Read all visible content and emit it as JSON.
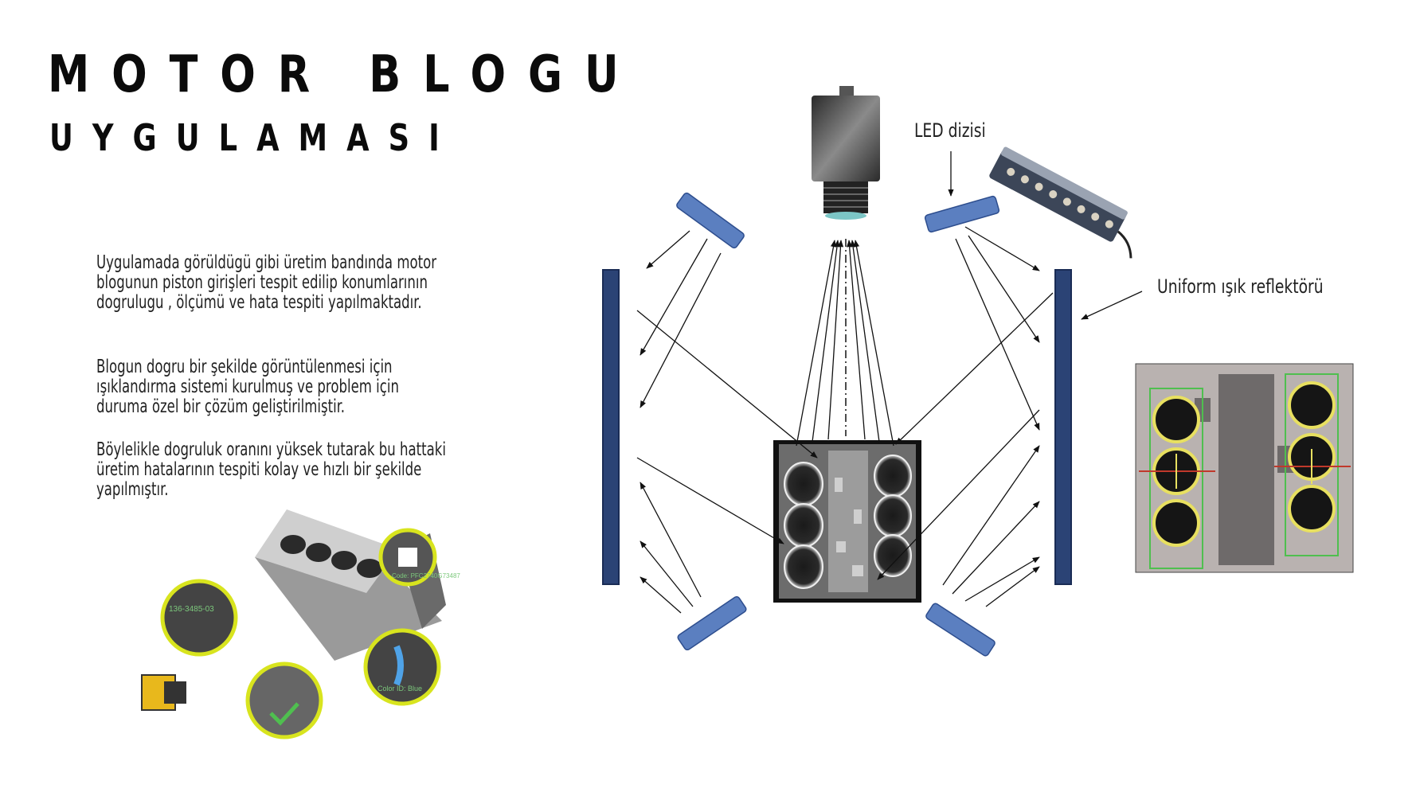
{
  "title": {
    "line1": "MOTOR BLOGU",
    "line2": "UYGULAMASI"
  },
  "paragraphs": [
    "Uygulamada görüldügü gibi üretim bandında motor blogunun piston girişleri tespit edilip konumlarının dogrulugu , ölçümü ve hata tespiti yapılmaktadır.",
    "Blogun dogru bir şekilde görüntülenmesi için ışıklandırma sistemi kurulmuş ve problem için duruma özel bir çözüm geliştirilmiştir.",
    "Böylelikle dogruluk oranını yüksek tutarak bu hattaki üretim hatalarının tespiti kolay ve hızlı bir şekilde yapılmıştır."
  ],
  "diagram": {
    "led_label": "LED dizisi",
    "reflector_label": "Uniform ışık reflektörü"
  },
  "engine_callouts": {
    "code1": "136-3485-03",
    "code2": "Code: PFC2740G73487",
    "color": "Color ID: Blue"
  },
  "colors": {
    "led_panel": "#5b7fc0",
    "reflector": "#2b4375",
    "inspect_yellow": "#e8e060",
    "inspect_green": "#4fbf4f",
    "callout_ring": "#d8e41e"
  }
}
